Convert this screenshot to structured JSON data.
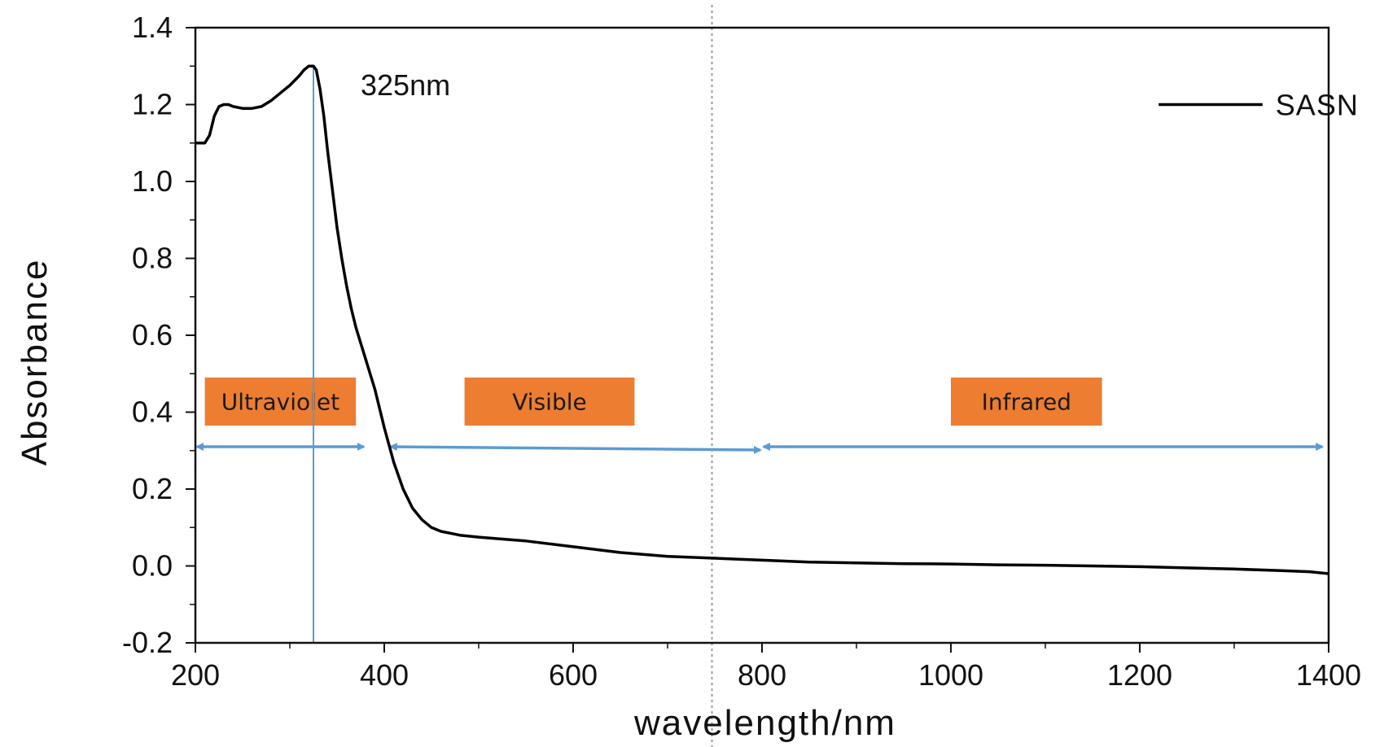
{
  "chart_data": {
    "type": "line",
    "title": "",
    "xlabel": "wavelength/nm",
    "ylabel": "Absorbance",
    "xlim": [
      200,
      1400
    ],
    "ylim": [
      -0.2,
      1.4
    ],
    "xticks": [
      200,
      400,
      600,
      800,
      1000,
      1200,
      1400
    ],
    "xtick_labels": [
      "200",
      "400",
      "600",
      "800",
      "1000",
      "1200",
      "1400"
    ],
    "yticks": [
      -0.2,
      0.0,
      0.2,
      0.4,
      0.6,
      0.8,
      1.0,
      1.2,
      1.4
    ],
    "ytick_labels": [
      "-0.2",
      "0.0",
      "0.2",
      "0.4",
      "0.6",
      "0.8",
      "1.0",
      "1.2",
      "1.4"
    ],
    "grid": false,
    "legend": {
      "position": "top-right",
      "entries": [
        "SASN"
      ]
    },
    "series": [
      {
        "name": "SASN",
        "color": "#000000",
        "x": [
          200,
          205,
          210,
          215,
          220,
          225,
          230,
          235,
          240,
          250,
          260,
          270,
          280,
          290,
          300,
          310,
          315,
          320,
          325,
          328,
          332,
          336,
          340,
          345,
          350,
          355,
          360,
          365,
          370,
          375,
          380,
          390,
          400,
          410,
          420,
          430,
          440,
          450,
          460,
          470,
          480,
          500,
          550,
          600,
          650,
          700,
          750,
          800,
          850,
          900,
          950,
          1000,
          1050,
          1100,
          1150,
          1200,
          1250,
          1300,
          1350,
          1380,
          1400
        ],
        "y": [
          1.1,
          1.1,
          1.1,
          1.12,
          1.17,
          1.195,
          1.2,
          1.2,
          1.195,
          1.19,
          1.19,
          1.195,
          1.21,
          1.23,
          1.25,
          1.275,
          1.29,
          1.3,
          1.3,
          1.29,
          1.24,
          1.17,
          1.08,
          0.98,
          0.88,
          0.8,
          0.73,
          0.67,
          0.62,
          0.58,
          0.54,
          0.46,
          0.36,
          0.27,
          0.2,
          0.15,
          0.12,
          0.1,
          0.09,
          0.085,
          0.08,
          0.075,
          0.065,
          0.05,
          0.035,
          0.025,
          0.02,
          0.015,
          0.01,
          0.008,
          0.006,
          0.005,
          0.003,
          0.002,
          0.0,
          -0.002,
          -0.005,
          -0.008,
          -0.012,
          -0.015,
          -0.02
        ]
      }
    ],
    "annotations": [
      {
        "text": "325nm",
        "x": 325,
        "y": 1.25
      }
    ],
    "reference_lines": [
      {
        "type": "vertical",
        "x": 325,
        "style": "solid",
        "color": "#5b9bd5"
      },
      {
        "type": "vertical",
        "x": 747,
        "style": "dotted",
        "color": "#9a9a9a"
      }
    ],
    "regions": [
      {
        "label": "Ultraviolet",
        "x_start": 200,
        "x_end": 380,
        "label_x_start": 210,
        "label_x_end": 370,
        "color": "#ed7d31",
        "arrow_color": "#5b9bd5"
      },
      {
        "label": "Visible",
        "x_start": 405,
        "x_end": 800,
        "label_x_start": 485,
        "label_x_end": 665,
        "color": "#ed7d31",
        "arrow_color": "#5b9bd5"
      },
      {
        "label": "Infrared",
        "x_start": 800,
        "x_end": 1395,
        "label_x_start": 1000,
        "label_x_end": 1160,
        "color": "#ed7d31",
        "arrow_color": "#5b9bd5"
      }
    ]
  }
}
